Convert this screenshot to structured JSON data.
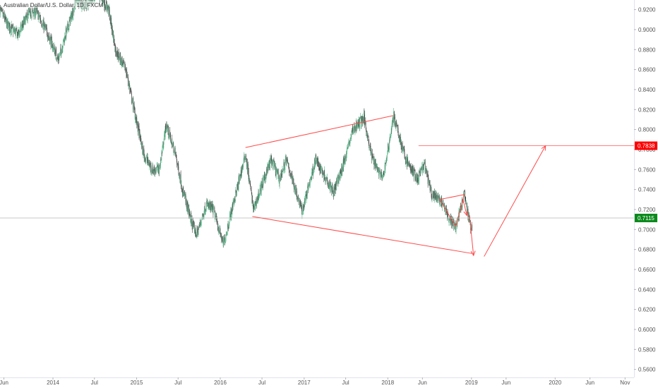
{
  "title": "Australian Dollar/U.S. Dollar, 1D, FXCM",
  "colors": {
    "up": "#53b987",
    "down": "#4a4a4a",
    "drawing": "#ff4a4a",
    "target_badge": "#ff0000",
    "price_badge": "#0b8a1c",
    "axis_text": "#555555",
    "price_line": "#c8c8c8"
  },
  "chart_data": {
    "type": "candlestick",
    "title": "Australian Dollar/U.S. Dollar, 1D, FXCM",
    "xlabel": "",
    "ylabel": "",
    "x_range": [
      "2013-05-15",
      "2020-12-10"
    ],
    "ylim": [
      0.552,
      0.9296
    ],
    "grid": false,
    "y_ticks": [
      "0.9200",
      "0.9000",
      "0.8800",
      "0.8600",
      "0.8400",
      "0.8200",
      "0.8000",
      "0.7800",
      "0.7600",
      "0.7400",
      "0.7200",
      "0.7000",
      "0.6800",
      "0.6600",
      "0.6400",
      "0.6200",
      "0.6000",
      "0.5800",
      "0.5600"
    ],
    "x_ticks": [
      {
        "label": "Jun",
        "date": "2013-06-01"
      },
      {
        "label": "2014",
        "date": "2014-01-01"
      },
      {
        "label": "Jul",
        "date": "2014-07-01"
      },
      {
        "label": "2015",
        "date": "2015-01-01"
      },
      {
        "label": "Jul",
        "date": "2015-07-01"
      },
      {
        "label": "2016",
        "date": "2016-01-01"
      },
      {
        "label": "Jul",
        "date": "2016-07-01"
      },
      {
        "label": "2017",
        "date": "2017-01-01"
      },
      {
        "label": "Jul",
        "date": "2017-07-01"
      },
      {
        "label": "2018",
        "date": "2018-01-01"
      },
      {
        "label": "Jun",
        "date": "2018-06-01"
      },
      {
        "label": "2019",
        "date": "2019-01-01"
      },
      {
        "label": "Jun",
        "date": "2019-06-01"
      },
      {
        "label": "2020",
        "date": "2020-01-01"
      },
      {
        "label": "Jun",
        "date": "2020-06-01"
      },
      {
        "label": "Nov",
        "date": "2020-11-01"
      }
    ],
    "price_path": [
      [
        "2013-05-15",
        0.92
      ],
      [
        "2013-06-15",
        0.905
      ],
      [
        "2013-08-01",
        0.895
      ],
      [
        "2013-09-15",
        0.915
      ],
      [
        "2013-10-20",
        0.918
      ],
      [
        "2013-12-01",
        0.9
      ],
      [
        "2014-01-25",
        0.87
      ],
      [
        "2014-03-01",
        0.898
      ],
      [
        "2014-04-15",
        0.93
      ],
      [
        "2014-05-20",
        0.925
      ],
      [
        "2014-07-20",
        0.935
      ],
      [
        "2014-09-01",
        0.92
      ],
      [
        "2014-10-01",
        0.88
      ],
      [
        "2014-11-15",
        0.86
      ],
      [
        "2014-12-25",
        0.815
      ],
      [
        "2015-02-01",
        0.775
      ],
      [
        "2015-03-10",
        0.76
      ],
      [
        "2015-04-10",
        0.76
      ],
      [
        "2015-05-10",
        0.805
      ],
      [
        "2015-06-20",
        0.775
      ],
      [
        "2015-07-20",
        0.74
      ],
      [
        "2015-09-01",
        0.705
      ],
      [
        "2015-09-20",
        0.695
      ],
      [
        "2015-11-01",
        0.725
      ],
      [
        "2015-12-01",
        0.72
      ],
      [
        "2016-01-15",
        0.685
      ],
      [
        "2016-02-15",
        0.715
      ],
      [
        "2016-04-20",
        0.775
      ],
      [
        "2016-05-25",
        0.72
      ],
      [
        "2016-07-10",
        0.75
      ],
      [
        "2016-08-10",
        0.77
      ],
      [
        "2016-09-15",
        0.75
      ],
      [
        "2016-10-15",
        0.77
      ],
      [
        "2016-12-23",
        0.718
      ],
      [
        "2017-02-20",
        0.77
      ],
      [
        "2017-05-10",
        0.738
      ],
      [
        "2017-06-15",
        0.76
      ],
      [
        "2017-08-01",
        0.8
      ],
      [
        "2017-09-20",
        0.812
      ],
      [
        "2017-10-20",
        0.775
      ],
      [
        "2017-12-10",
        0.75
      ],
      [
        "2018-01-26",
        0.813
      ],
      [
        "2018-03-20",
        0.77
      ],
      [
        "2018-05-10",
        0.75
      ],
      [
        "2018-06-10",
        0.765
      ],
      [
        "2018-07-10",
        0.735
      ],
      [
        "2018-08-15",
        0.73
      ],
      [
        "2018-10-01",
        0.71
      ],
      [
        "2018-10-25",
        0.703
      ],
      [
        "2018-12-01",
        0.735
      ],
      [
        "2018-12-20",
        0.71
      ],
      [
        "2019-01-03",
        0.7
      ]
    ],
    "current_price": "0.7115",
    "target_price": "0.7838",
    "annotations": {
      "upper_trendline": [
        [
          "2016-04-20",
          0.782
        ],
        [
          "2018-01-26",
          0.814
        ]
      ],
      "lower_trendline": [
        [
          "2016-05-20",
          0.713
        ],
        [
          "2019-01-03",
          0.676
        ]
      ],
      "target_line": [
        [
          "2018-05-15",
          0.7838
        ],
        [
          "2020-12-10",
          0.7838
        ]
      ],
      "projection_down": [
        [
          "2018-12-23",
          0.7145
        ],
        [
          "2019-01-10",
          0.674
        ]
      ],
      "projection_up": [
        [
          "2019-02-25",
          0.673
        ],
        [
          "2019-11-20",
          0.7838
        ]
      ],
      "small_triangle": [
        [
          "2018-08-15",
          0.73
        ],
        [
          "2018-10-25",
          0.703
        ],
        [
          "2018-12-01",
          0.735
        ]
      ],
      "small_arrow": [
        [
          "2018-11-25",
          0.73
        ],
        [
          "2018-12-12",
          0.714
        ]
      ]
    }
  }
}
